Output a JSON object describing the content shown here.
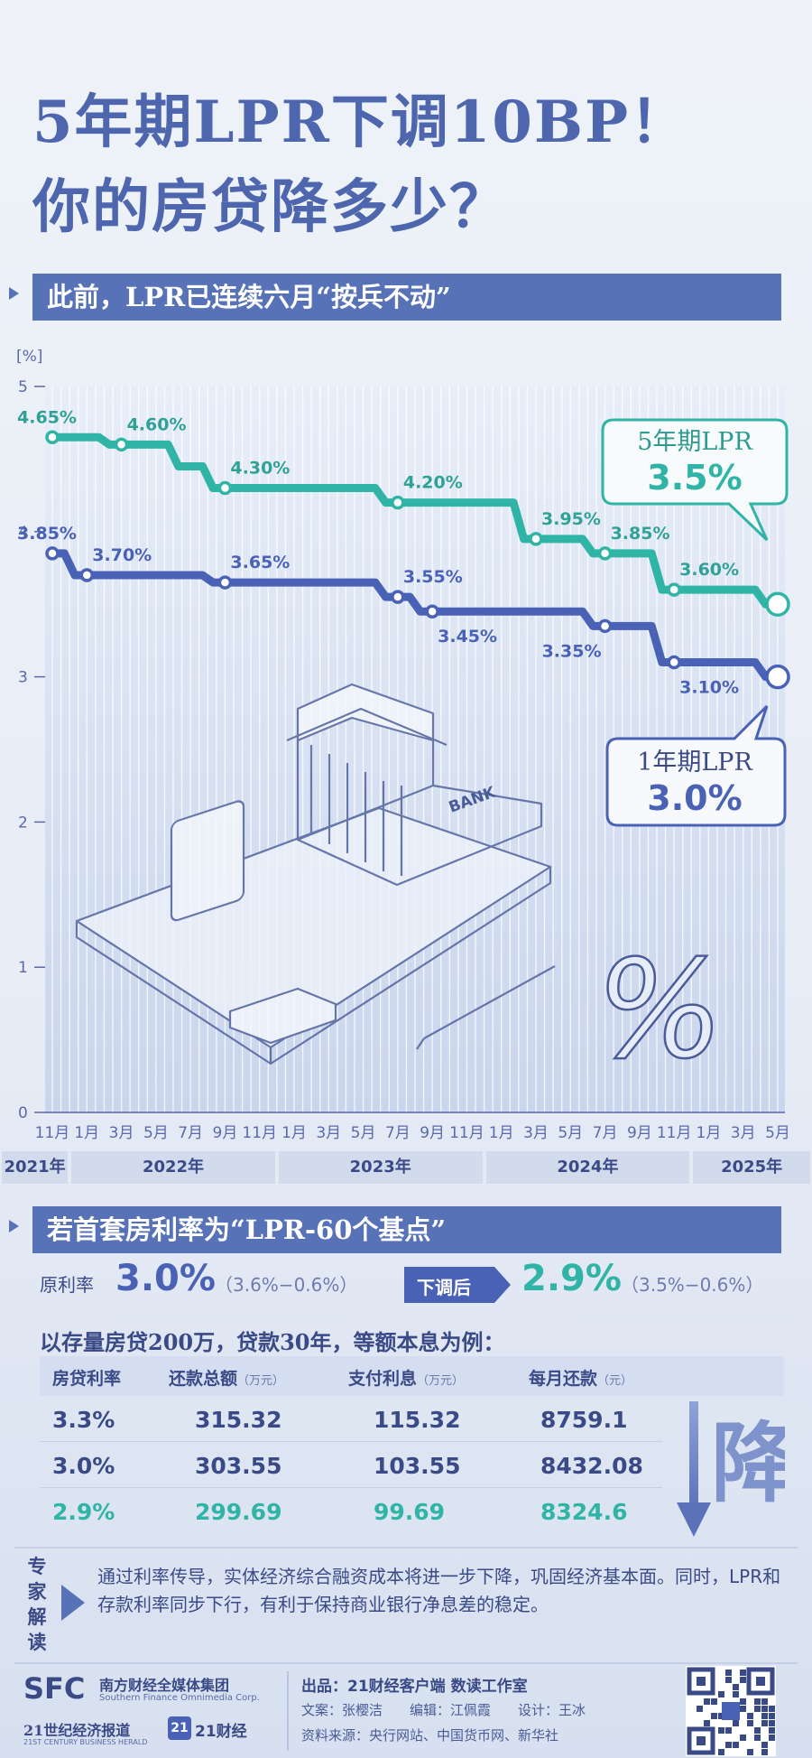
{
  "title": {
    "line1": "5年期LPR下调10BP！",
    "line2": "你的房贷降多少？"
  },
  "section1": {
    "banner": "此前，LPR已连续六月“按兵不动”"
  },
  "chart_data": {
    "type": "line",
    "ylabel": "[%]",
    "ylim": [
      0,
      5
    ],
    "yticks": [
      0,
      1,
      2,
      3,
      4,
      5
    ],
    "x_labels": [
      "11月",
      "1月",
      "3月",
      "5月",
      "7月",
      "9月",
      "11月",
      "1月",
      "3月",
      "5月",
      "7月",
      "9月",
      "11月",
      "1月",
      "3月",
      "5月",
      "7月",
      "9月",
      "11月",
      "1月",
      "3月",
      "5月"
    ],
    "year_groups": [
      {
        "label": "2021年",
        "span": 1
      },
      {
        "label": "2022年",
        "span": 6
      },
      {
        "label": "2023年",
        "span": 6
      },
      {
        "label": "2024年",
        "span": 6
      },
      {
        "label": "2025年",
        "span": 3
      }
    ],
    "series": [
      {
        "name": "5年期LPR",
        "color": "#2fb4a6",
        "points": [
          [
            0,
            4.65
          ],
          [
            1,
            4.65
          ],
          [
            2,
            4.6
          ],
          [
            3,
            4.6
          ],
          [
            4,
            4.45
          ],
          [
            5,
            4.3
          ],
          [
            6,
            4.3
          ],
          [
            7,
            4.3
          ],
          [
            8,
            4.3
          ],
          [
            9,
            4.3
          ],
          [
            10,
            4.2
          ],
          [
            11,
            4.2
          ],
          [
            12,
            4.2
          ],
          [
            13,
            4.2
          ],
          [
            14,
            3.95
          ],
          [
            15,
            3.95
          ],
          [
            16,
            3.85
          ],
          [
            17,
            3.85
          ],
          [
            18,
            3.6
          ],
          [
            19,
            3.6
          ],
          [
            20,
            3.6
          ],
          [
            21,
            3.5
          ]
        ],
        "labels": [
          {
            "i": 0,
            "text": "4.65%"
          },
          {
            "i": 2,
            "text": "4.60%"
          },
          {
            "i": 5,
            "text": "4.30%"
          },
          {
            "i": 10,
            "text": "4.20%"
          },
          {
            "i": 14,
            "text": "3.95%"
          },
          {
            "i": 16,
            "text": "3.85%"
          },
          {
            "i": 18,
            "text": "3.60%"
          }
        ],
        "callout": {
          "name": "5年期LPR",
          "value": "3.5%"
        }
      },
      {
        "name": "1年期LPR",
        "color": "#4a62b5",
        "points": [
          [
            0,
            3.85
          ],
          [
            1,
            3.7
          ],
          [
            2,
            3.7
          ],
          [
            3,
            3.7
          ],
          [
            4,
            3.7
          ],
          [
            5,
            3.65
          ],
          [
            6,
            3.65
          ],
          [
            7,
            3.65
          ],
          [
            8,
            3.65
          ],
          [
            9,
            3.65
          ],
          [
            10,
            3.55
          ],
          [
            11,
            3.45
          ],
          [
            12,
            3.45
          ],
          [
            13,
            3.45
          ],
          [
            14,
            3.45
          ],
          [
            15,
            3.45
          ],
          [
            16,
            3.35
          ],
          [
            17,
            3.35
          ],
          [
            18,
            3.1
          ],
          [
            19,
            3.1
          ],
          [
            20,
            3.1
          ],
          [
            21,
            3.0
          ]
        ],
        "labels": [
          {
            "i": 0,
            "text": "3.85%"
          },
          {
            "i": 1,
            "text": "3.70%"
          },
          {
            "i": 5,
            "text": "3.65%"
          },
          {
            "i": 10,
            "text": "3.55%"
          },
          {
            "i": 11,
            "text": "3.45%"
          },
          {
            "i": 16,
            "text": "3.35%"
          },
          {
            "i": 18,
            "text": "3.10%"
          }
        ],
        "callout": {
          "name": "1年期LPR",
          "value": "3.0%"
        }
      }
    ],
    "illustration_text": "BANK",
    "illustration_symbol": "%"
  },
  "section2": {
    "banner": "若首套房利率为“LPR-60个基点”",
    "original_label": "原利率",
    "original_rate": "3.0%",
    "original_formula": "（3.6%−0.6%）",
    "adjust_label": "下调后",
    "new_rate": "2.9%",
    "new_formula": "（3.5%−0.6%）",
    "example_text": "以存量房贷200万，贷款30年，等额本息为例：",
    "table": {
      "headers": [
        {
          "main": "房贷利率",
          "unit": ""
        },
        {
          "main": "还款总额",
          "unit": "（万元）"
        },
        {
          "main": "支付利息",
          "unit": "（万元）"
        },
        {
          "main": "每月还款",
          "unit": "（元）"
        }
      ],
      "rows": [
        [
          "3.3%",
          "315.32",
          "115.32",
          "8759.1"
        ],
        [
          "3.0%",
          "303.55",
          "103.55",
          "8432.08"
        ],
        [
          "2.9%",
          "299.69",
          "99.69",
          "8324.6"
        ]
      ],
      "highlight_color": "#2fb4a6"
    },
    "side_char": "降"
  },
  "expert": {
    "label": "专家解读",
    "text": "通过利率传导，实体经济综合融资成本将进一步下降，巩固经济基本面。同时，LPR和存款利率同步下行，有利于保持商业银行净息差的稳定。"
  },
  "footer": {
    "logo": "SFC",
    "group_name": "南方财经全媒体集团",
    "group_en": "Southern Finance Omnimedia Corp.",
    "herald": "21世纪经济报道",
    "herald_en": "21ST CENTURY BUSINESS HERALD",
    "app_num": "21",
    "app_name": "21财经",
    "producer": "出品：21财经客户端 数读工作室",
    "credits": "文案：张樱洁　　编辑：江佩霞　　设计：王冰",
    "source": "资料来源：央行网站、中国货币网、新华社"
  },
  "colors": {
    "accent": "#5772b7",
    "teal": "#2fb4a6",
    "blue": "#4a62b5",
    "text": "#3a4a86"
  }
}
